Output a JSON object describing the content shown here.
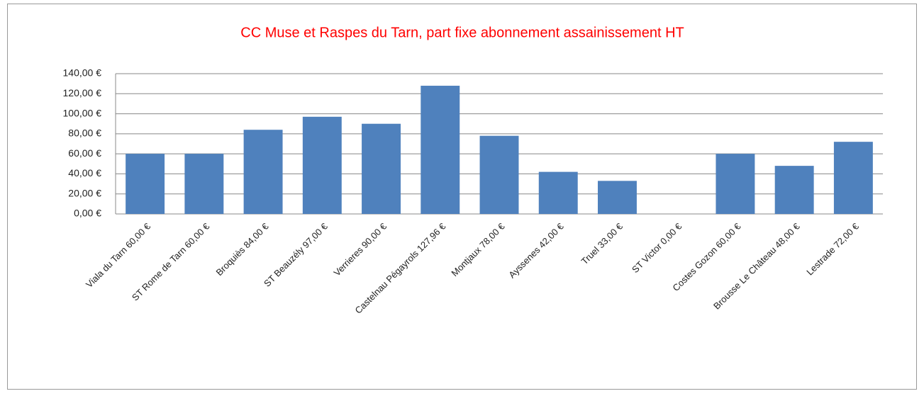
{
  "chart_data": {
    "type": "bar",
    "title": "CC Muse et Raspes du Tarn, part fixe abonnement assainissement HT",
    "categories": [
      "Viala du Tarn 60,00 €",
      "ST Rome de Tarn 60,00 €",
      "Broquiès 84,00 €",
      "ST Beauzély 97,00 €",
      "Verrieres 90,00 €",
      "Castelnau Pégayrols 127,96 €",
      "Montjaux 78,00 €",
      "Ayssenes 42,00 €",
      "Truel 33,00 €",
      "ST Victor 0,00 €",
      "Costes Gozon 60,00 €",
      "Brousse Le Château 48,00 €",
      "Lestrade 72,00 €"
    ],
    "values": [
      60,
      60,
      84,
      97,
      90,
      127.96,
      78,
      42,
      33,
      0,
      60,
      48,
      72
    ],
    "color": "#4f81bd",
    "ylim": [
      0,
      140
    ],
    "yticks": [
      {
        "value": 0,
        "label": "0,00 €"
      },
      {
        "value": 20,
        "label": "20,00 €"
      },
      {
        "value": 40,
        "label": "40,00 €"
      },
      {
        "value": 60,
        "label": "60,00 €"
      },
      {
        "value": 80,
        "label": "80,00 €"
      },
      {
        "value": 100,
        "label": "100,00 €"
      },
      {
        "value": 120,
        "label": "120,00 €"
      },
      {
        "value": 140,
        "label": "140,00 €"
      }
    ],
    "grid": true
  }
}
